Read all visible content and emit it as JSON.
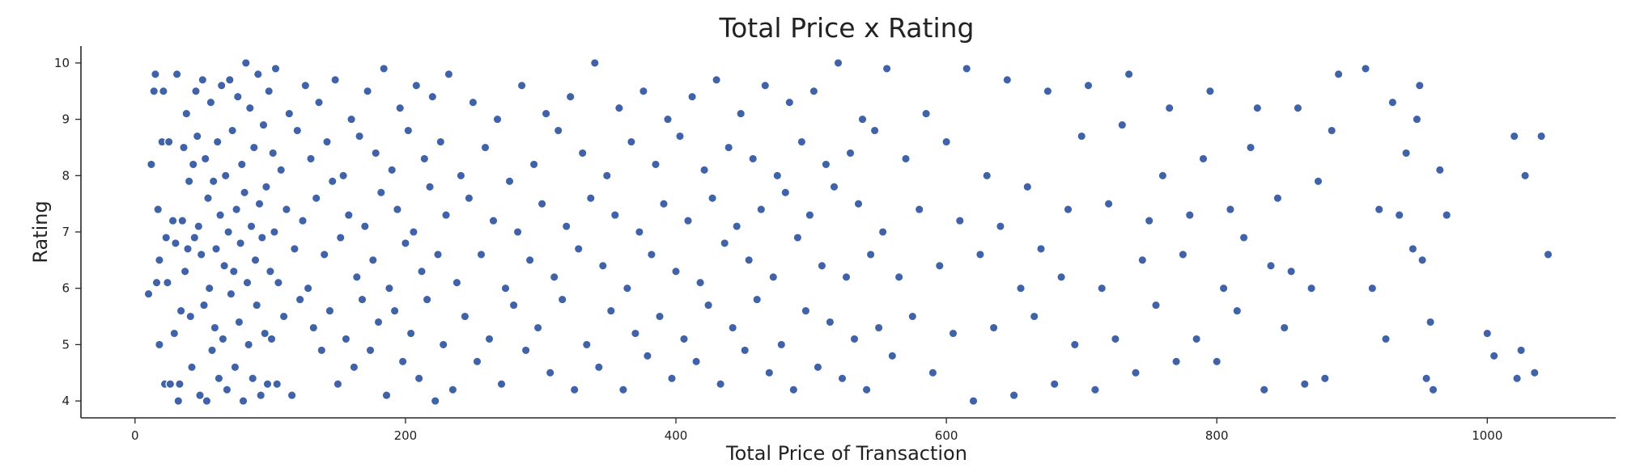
{
  "chart_data": {
    "type": "scatter",
    "title": "Total Price x Rating",
    "xlabel": "Total Price of Transaction",
    "ylabel": "Rating",
    "xlim": [
      -40,
      1095
    ],
    "ylim": [
      3.7,
      10.3
    ],
    "xticks": [
      0,
      200,
      400,
      600,
      800,
      1000
    ],
    "yticks": [
      4,
      5,
      6,
      7,
      8,
      9,
      10
    ],
    "grid": false,
    "marker_color": "#4062a8",
    "points": [
      [
        10,
        5.9
      ],
      [
        12,
        8.2
      ],
      [
        14,
        9.5
      ],
      [
        15,
        9.8
      ],
      [
        16,
        6.1
      ],
      [
        17,
        7.4
      ],
      [
        18,
        5.0
      ],
      [
        18,
        6.5
      ],
      [
        20,
        8.6
      ],
      [
        21,
        9.5
      ],
      [
        22,
        4.3
      ],
      [
        23,
        6.9
      ],
      [
        24,
        6.1
      ],
      [
        25,
        8.6
      ],
      [
        26,
        4.3
      ],
      [
        28,
        7.2
      ],
      [
        29,
        5.2
      ],
      [
        30,
        6.8
      ],
      [
        31,
        9.8
      ],
      [
        32,
        4.0
      ],
      [
        33,
        4.3
      ],
      [
        34,
        5.6
      ],
      [
        35,
        7.2
      ],
      [
        36,
        8.5
      ],
      [
        37,
        6.3
      ],
      [
        38,
        9.1
      ],
      [
        39,
        6.7
      ],
      [
        40,
        7.9
      ],
      [
        41,
        5.5
      ],
      [
        42,
        4.6
      ],
      [
        43,
        8.2
      ],
      [
        44,
        6.9
      ],
      [
        45,
        9.5
      ],
      [
        46,
        8.7
      ],
      [
        47,
        7.1
      ],
      [
        48,
        4.1
      ],
      [
        49,
        6.6
      ],
      [
        50,
        9.7
      ],
      [
        51,
        5.7
      ],
      [
        52,
        8.3
      ],
      [
        53,
        4.0
      ],
      [
        54,
        7.6
      ],
      [
        55,
        6.0
      ],
      [
        56,
        9.3
      ],
      [
        57,
        4.9
      ],
      [
        58,
        7.9
      ],
      [
        59,
        5.3
      ],
      [
        60,
        6.7
      ],
      [
        61,
        8.6
      ],
      [
        62,
        4.4
      ],
      [
        63,
        7.3
      ],
      [
        64,
        9.6
      ],
      [
        65,
        5.1
      ],
      [
        66,
        6.4
      ],
      [
        67,
        8.0
      ],
      [
        68,
        4.2
      ],
      [
        69,
        7.0
      ],
      [
        70,
        9.7
      ],
      [
        71,
        5.9
      ],
      [
        72,
        8.8
      ],
      [
        73,
        6.3
      ],
      [
        74,
        4.6
      ],
      [
        75,
        7.4
      ],
      [
        76,
        9.4
      ],
      [
        77,
        5.4
      ],
      [
        78,
        6.8
      ],
      [
        79,
        8.2
      ],
      [
        80,
        4.0
      ],
      [
        81,
        7.7
      ],
      [
        82,
        10.0
      ],
      [
        83,
        6.1
      ],
      [
        84,
        5.0
      ],
      [
        85,
        9.2
      ],
      [
        86,
        7.1
      ],
      [
        87,
        4.4
      ],
      [
        88,
        8.5
      ],
      [
        89,
        6.5
      ],
      [
        90,
        5.7
      ],
      [
        91,
        9.8
      ],
      [
        92,
        7.5
      ],
      [
        93,
        4.1
      ],
      [
        94,
        6.9
      ],
      [
        95,
        8.9
      ],
      [
        96,
        5.2
      ],
      [
        97,
        7.8
      ],
      [
        98,
        4.3
      ],
      [
        99,
        9.5
      ],
      [
        100,
        6.3
      ],
      [
        101,
        5.1
      ],
      [
        102,
        8.4
      ],
      [
        103,
        7.0
      ],
      [
        104,
        9.9
      ],
      [
        105,
        4.3
      ],
      [
        106,
        6.1
      ],
      [
        108,
        8.1
      ],
      [
        110,
        5.5
      ],
      [
        112,
        7.4
      ],
      [
        114,
        9.1
      ],
      [
        116,
        4.1
      ],
      [
        118,
        6.7
      ],
      [
        120,
        8.8
      ],
      [
        122,
        5.8
      ],
      [
        124,
        7.2
      ],
      [
        126,
        9.6
      ],
      [
        128,
        6.0
      ],
      [
        130,
        8.3
      ],
      [
        132,
        5.3
      ],
      [
        134,
        7.6
      ],
      [
        136,
        9.3
      ],
      [
        138,
        4.9
      ],
      [
        140,
        6.6
      ],
      [
        142,
        8.6
      ],
      [
        144,
        5.6
      ],
      [
        146,
        7.9
      ],
      [
        148,
        9.7
      ],
      [
        150,
        4.3
      ],
      [
        152,
        6.9
      ],
      [
        154,
        8.0
      ],
      [
        156,
        5.1
      ],
      [
        158,
        7.3
      ],
      [
        160,
        9.0
      ],
      [
        162,
        4.6
      ],
      [
        164,
        6.2
      ],
      [
        166,
        8.7
      ],
      [
        168,
        5.8
      ],
      [
        170,
        7.1
      ],
      [
        172,
        9.5
      ],
      [
        174,
        4.9
      ],
      [
        176,
        6.5
      ],
      [
        178,
        8.4
      ],
      [
        180,
        5.4
      ],
      [
        182,
        7.7
      ],
      [
        184,
        9.9
      ],
      [
        186,
        4.1
      ],
      [
        188,
        6.0
      ],
      [
        190,
        8.1
      ],
      [
        192,
        5.6
      ],
      [
        194,
        7.4
      ],
      [
        196,
        9.2
      ],
      [
        198,
        4.7
      ],
      [
        200,
        6.8
      ],
      [
        202,
        8.8
      ],
      [
        204,
        5.2
      ],
      [
        206,
        7.0
      ],
      [
        208,
        9.6
      ],
      [
        210,
        4.4
      ],
      [
        212,
        6.3
      ],
      [
        214,
        8.3
      ],
      [
        216,
        5.8
      ],
      [
        218,
        7.8
      ],
      [
        220,
        9.4
      ],
      [
        222,
        4.0
      ],
      [
        224,
        6.6
      ],
      [
        226,
        8.6
      ],
      [
        228,
        5.0
      ],
      [
        230,
        7.3
      ],
      [
        232,
        9.8
      ],
      [
        235,
        4.2
      ],
      [
        238,
        6.1
      ],
      [
        241,
        8.0
      ],
      [
        244,
        5.5
      ],
      [
        247,
        7.6
      ],
      [
        250,
        9.3
      ],
      [
        253,
        4.7
      ],
      [
        256,
        6.6
      ],
      [
        259,
        8.5
      ],
      [
        262,
        5.1
      ],
      [
        265,
        7.2
      ],
      [
        268,
        9.0
      ],
      [
        271,
        4.3
      ],
      [
        274,
        6.0
      ],
      [
        277,
        7.9
      ],
      [
        280,
        5.7
      ],
      [
        283,
        7.0
      ],
      [
        286,
        9.6
      ],
      [
        289,
        4.9
      ],
      [
        292,
        6.5
      ],
      [
        295,
        8.2
      ],
      [
        298,
        5.3
      ],
      [
        301,
        7.5
      ],
      [
        304,
        9.1
      ],
      [
        307,
        4.5
      ],
      [
        310,
        6.2
      ],
      [
        313,
        8.8
      ],
      [
        316,
        5.8
      ],
      [
        319,
        7.1
      ],
      [
        322,
        9.4
      ],
      [
        325,
        4.2
      ],
      [
        328,
        6.7
      ],
      [
        331,
        8.4
      ],
      [
        334,
        5.0
      ],
      [
        337,
        7.6
      ],
      [
        340,
        10.0
      ],
      [
        343,
        4.6
      ],
      [
        346,
        6.4
      ],
      [
        349,
        8.0
      ],
      [
        352,
        5.6
      ],
      [
        355,
        7.3
      ],
      [
        358,
        9.2
      ],
      [
        361,
        4.2
      ],
      [
        364,
        6.0
      ],
      [
        367,
        8.6
      ],
      [
        370,
        5.2
      ],
      [
        373,
        7.0
      ],
      [
        376,
        9.5
      ],
      [
        379,
        4.8
      ],
      [
        382,
        6.6
      ],
      [
        385,
        8.2
      ],
      [
        388,
        5.5
      ],
      [
        391,
        7.5
      ],
      [
        394,
        9.0
      ],
      [
        397,
        4.4
      ],
      [
        400,
        6.3
      ],
      [
        403,
        8.7
      ],
      [
        406,
        5.1
      ],
      [
        409,
        7.2
      ],
      [
        412,
        9.4
      ],
      [
        415,
        4.7
      ],
      [
        418,
        6.1
      ],
      [
        421,
        8.1
      ],
      [
        424,
        5.7
      ],
      [
        427,
        7.6
      ],
      [
        430,
        9.7
      ],
      [
        433,
        4.3
      ],
      [
        436,
        6.8
      ],
      [
        439,
        8.5
      ],
      [
        442,
        5.3
      ],
      [
        445,
        7.1
      ],
      [
        448,
        9.1
      ],
      [
        451,
        4.9
      ],
      [
        454,
        6.5
      ],
      [
        457,
        8.3
      ],
      [
        460,
        5.8
      ],
      [
        463,
        7.4
      ],
      [
        466,
        9.6
      ],
      [
        469,
        4.5
      ],
      [
        472,
        6.2
      ],
      [
        475,
        8.0
      ],
      [
        478,
        5.0
      ],
      [
        481,
        7.7
      ],
      [
        484,
        9.3
      ],
      [
        487,
        4.2
      ],
      [
        490,
        6.9
      ],
      [
        493,
        8.6
      ],
      [
        496,
        5.6
      ],
      [
        499,
        7.3
      ],
      [
        502,
        9.5
      ],
      [
        505,
        4.6
      ],
      [
        508,
        6.4
      ],
      [
        511,
        8.2
      ],
      [
        514,
        5.4
      ],
      [
        517,
        7.8
      ],
      [
        520,
        10.0
      ],
      [
        523,
        4.4
      ],
      [
        526,
        6.2
      ],
      [
        529,
        8.4
      ],
      [
        532,
        5.1
      ],
      [
        535,
        7.5
      ],
      [
        538,
        9.0
      ],
      [
        541,
        4.2
      ],
      [
        544,
        6.6
      ],
      [
        547,
        8.8
      ],
      [
        550,
        5.3
      ],
      [
        553,
        7.0
      ],
      [
        556,
        9.9
      ],
      [
        560,
        4.8
      ],
      [
        565,
        6.2
      ],
      [
        570,
        8.3
      ],
      [
        575,
        5.5
      ],
      [
        580,
        7.4
      ],
      [
        585,
        9.1
      ],
      [
        590,
        4.5
      ],
      [
        595,
        6.4
      ],
      [
        600,
        8.6
      ],
      [
        605,
        5.2
      ],
      [
        610,
        7.2
      ],
      [
        615,
        9.9
      ],
      [
        620,
        4.0
      ],
      [
        625,
        6.6
      ],
      [
        630,
        8.0
      ],
      [
        635,
        5.3
      ],
      [
        640,
        7.1
      ],
      [
        645,
        9.7
      ],
      [
        650,
        4.1
      ],
      [
        655,
        6.0
      ],
      [
        660,
        7.8
      ],
      [
        665,
        5.5
      ],
      [
        670,
        6.7
      ],
      [
        675,
        9.5
      ],
      [
        680,
        4.3
      ],
      [
        685,
        6.2
      ],
      [
        690,
        7.4
      ],
      [
        695,
        5.0
      ],
      [
        700,
        8.7
      ],
      [
        705,
        9.6
      ],
      [
        710,
        4.2
      ],
      [
        715,
        6.0
      ],
      [
        720,
        7.5
      ],
      [
        725,
        5.1
      ],
      [
        730,
        8.9
      ],
      [
        735,
        9.8
      ],
      [
        740,
        4.5
      ],
      [
        745,
        6.5
      ],
      [
        750,
        7.2
      ],
      [
        755,
        5.7
      ],
      [
        760,
        8.0
      ],
      [
        765,
        9.2
      ],
      [
        770,
        4.7
      ],
      [
        775,
        6.6
      ],
      [
        780,
        7.3
      ],
      [
        785,
        5.1
      ],
      [
        790,
        8.3
      ],
      [
        795,
        9.5
      ],
      [
        800,
        4.7
      ],
      [
        805,
        6.0
      ],
      [
        810,
        7.4
      ],
      [
        815,
        5.6
      ],
      [
        820,
        6.9
      ],
      [
        825,
        8.5
      ],
      [
        830,
        9.2
      ],
      [
        835,
        4.2
      ],
      [
        840,
        6.4
      ],
      [
        845,
        7.6
      ],
      [
        850,
        5.3
      ],
      [
        855,
        6.3
      ],
      [
        860,
        9.2
      ],
      [
        865,
        4.3
      ],
      [
        870,
        6.0
      ],
      [
        875,
        7.9
      ],
      [
        880,
        4.4
      ],
      [
        885,
        8.8
      ],
      [
        890,
        9.8
      ],
      [
        910,
        9.9
      ],
      [
        915,
        6.0
      ],
      [
        920,
        7.4
      ],
      [
        925,
        5.1
      ],
      [
        930,
        9.3
      ],
      [
        935,
        7.3
      ],
      [
        940,
        8.4
      ],
      [
        945,
        6.7
      ],
      [
        948,
        9.0
      ],
      [
        950,
        9.6
      ],
      [
        952,
        6.5
      ],
      [
        955,
        4.4
      ],
      [
        958,
        5.4
      ],
      [
        960,
        4.2
      ],
      [
        965,
        8.1
      ],
      [
        970,
        7.3
      ],
      [
        1000,
        5.2
      ],
      [
        1005,
        4.8
      ],
      [
        1020,
        8.7
      ],
      [
        1022,
        4.4
      ],
      [
        1025,
        4.9
      ],
      [
        1028,
        8.0
      ],
      [
        1035,
        4.5
      ],
      [
        1040,
        8.7
      ],
      [
        1045,
        6.6
      ]
    ]
  }
}
